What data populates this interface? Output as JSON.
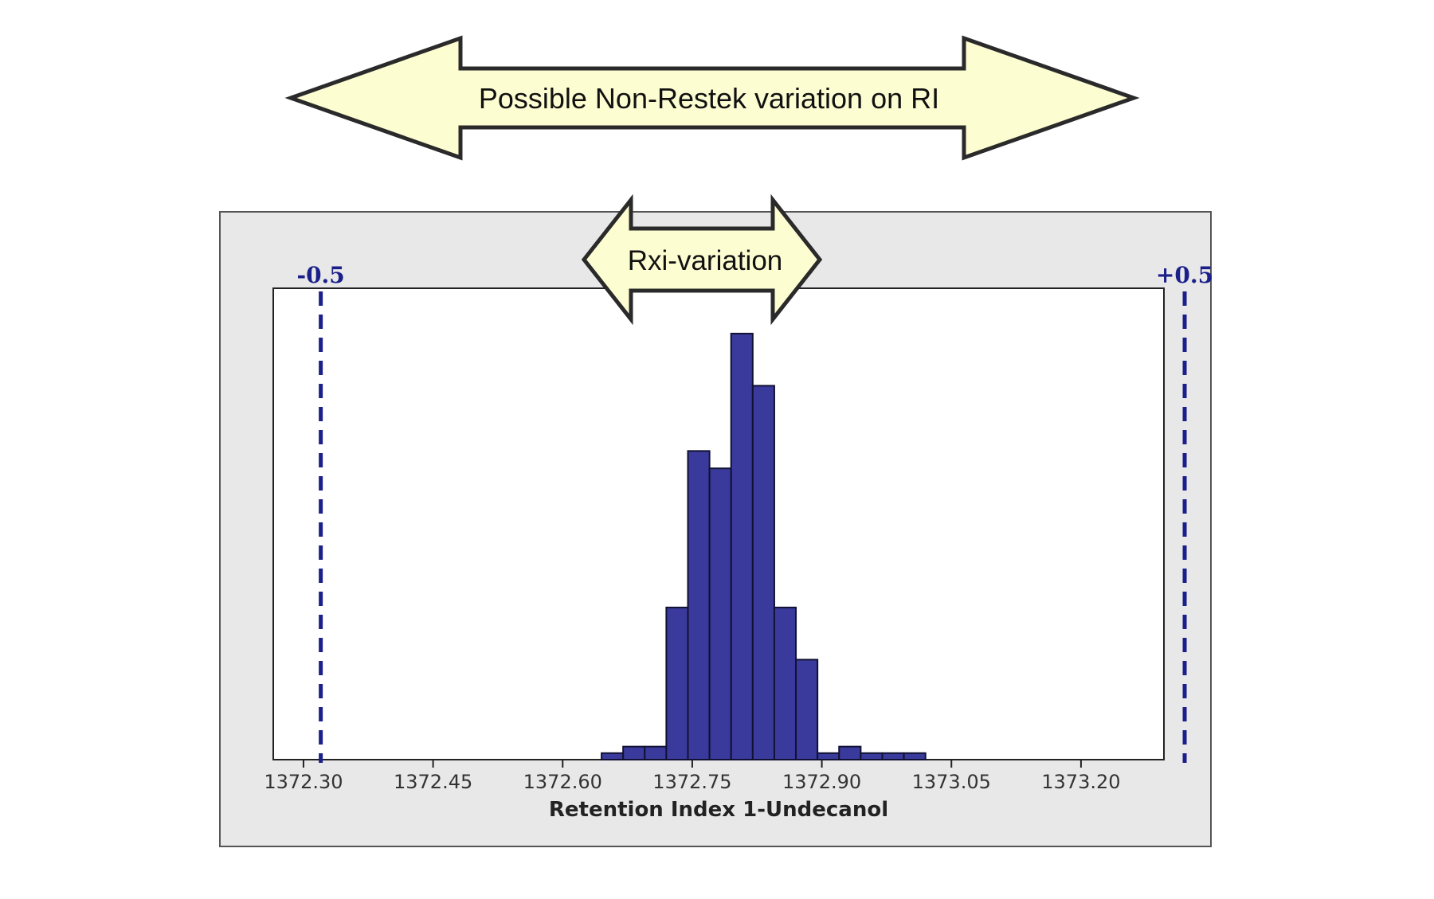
{
  "banner": {
    "outer_label": "Possible Non-Restek variation on RI",
    "inner_label": "Rxi-variation"
  },
  "chart_data": {
    "type": "bar",
    "subtype": "histogram",
    "title": "",
    "xlabel": "Retention Index 1-Undecanol",
    "ylabel": "",
    "xlim": [
      1372.265,
      1373.296
    ],
    "x_ticks": [
      1372.3,
      1372.45,
      1372.6,
      1372.75,
      1372.9,
      1373.05,
      1373.2
    ],
    "x_tick_labels": [
      "1372.30",
      "1372.45",
      "1372.60",
      "1372.75",
      "1372.90",
      "1373.05",
      "1373.20"
    ],
    "ylim": [
      0,
      100
    ],
    "bin_width": 0.025,
    "bins_start": [
      1372.645,
      1372.67,
      1372.695,
      1372.72,
      1372.745,
      1372.77,
      1372.795,
      1372.82,
      1372.845,
      1372.87,
      1372.895,
      1372.92,
      1372.945,
      1372.97,
      1372.995
    ],
    "values": [
      1.5,
      3,
      3,
      35,
      71,
      67,
      98,
      86,
      35,
      23,
      1.5,
      3,
      1.5,
      1.5,
      1.5
    ],
    "bar_color": "#3a3a9c",
    "bar_edge": "#111133",
    "reference_lines": [
      {
        "x": 1372.32,
        "label": "-0.5"
      },
      {
        "x": 1373.32,
        "label": "+0.5"
      }
    ],
    "ref_color": "#1a1f8a",
    "grid": false,
    "legend": "none"
  },
  "colors": {
    "arrow_fill": "#fdfdd2",
    "arrow_stroke": "#2a2a2a",
    "panel_bg": "#e8e8e8",
    "plot_bg": "#ffffff"
  }
}
